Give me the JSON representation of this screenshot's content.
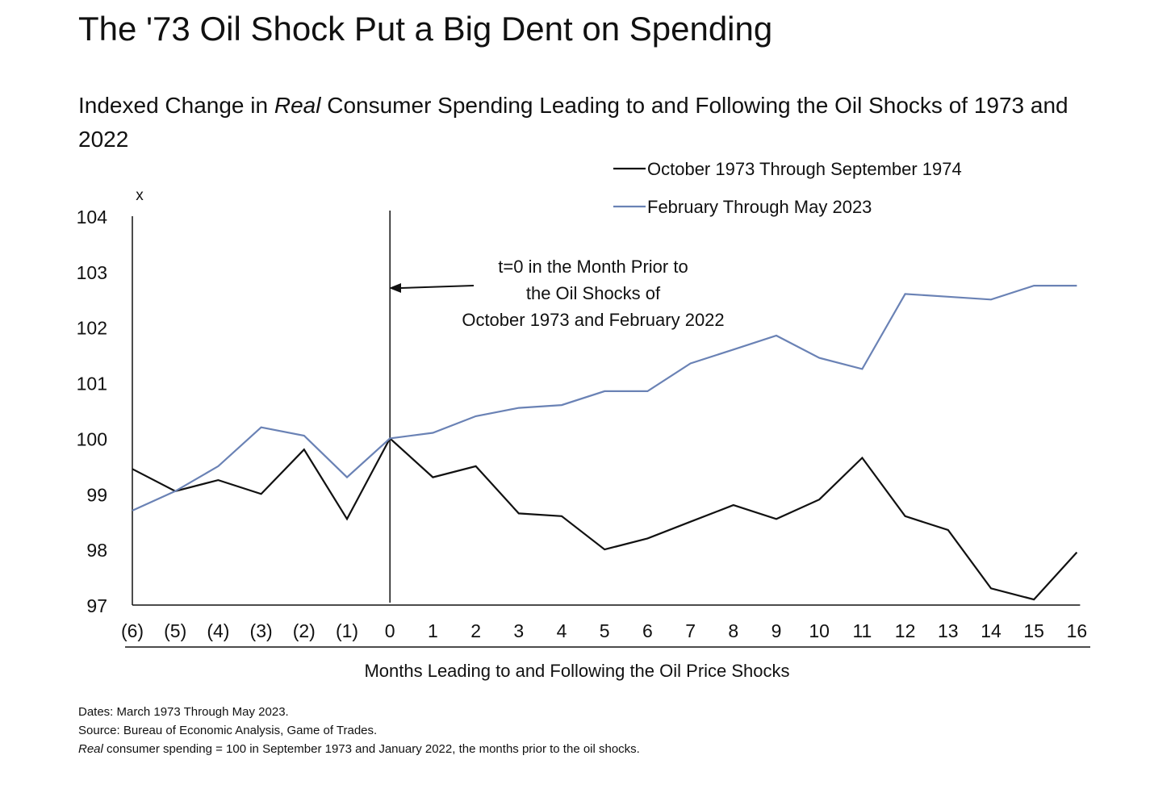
{
  "title": "The '73 Oil Shock Put a Big Dent on Spending",
  "subtitle": {
    "before": "Indexed Change in ",
    "italic": "Real",
    "after": " Consumer Spending Leading to and Following the Oil Shocks of 1973 and 2022"
  },
  "notes": {
    "dates": "Dates: March 1973 Through May 2023.",
    "source": "Source: Bureau of Economic Analysis, Game of Trades.",
    "definition_italic": "Real",
    "definition_rest": " consumer spending = 100 in September 1973 and January 2022, the months prior to the oil shocks."
  },
  "chart_data": {
    "type": "line",
    "xlabel": "Months Leading to and Following the Oil Price Shocks",
    "ylabel": "x",
    "ylim": [
      97,
      104
    ],
    "yticks": [
      97,
      98,
      99,
      100,
      101,
      102,
      103,
      104
    ],
    "categories": [
      "(6)",
      "(5)",
      "(4)",
      "(3)",
      "(2)",
      "(1)",
      "0",
      "1",
      "2",
      "3",
      "4",
      "5",
      "6",
      "7",
      "8",
      "9",
      "10",
      "11",
      "12",
      "13",
      "14",
      "15",
      "16"
    ],
    "series": [
      {
        "name": "October 1973 Through September 1974",
        "color": "#111111",
        "values": [
          99.45,
          99.05,
          99.25,
          99.0,
          99.8,
          98.55,
          100.0,
          99.3,
          99.5,
          98.65,
          98.6,
          98.0,
          98.2,
          98.5,
          98.8,
          98.55,
          98.9,
          99.65,
          98.6,
          98.35,
          97.3,
          97.1,
          97.95
        ]
      },
      {
        "name": "February Through May 2023",
        "color": "#6a82b5",
        "values": [
          98.7,
          99.05,
          99.5,
          100.2,
          100.05,
          99.3,
          100.0,
          100.1,
          100.4,
          100.55,
          100.6,
          100.85,
          100.85,
          101.35,
          101.6,
          101.85,
          101.45,
          101.25,
          102.6,
          102.55,
          102.5,
          102.75,
          102.75
        ]
      }
    ],
    "legend_position": "top-right",
    "grid": false,
    "reference_line": {
      "x": "0"
    },
    "annotation": {
      "lines": [
        "t=0 in the Month Prior to",
        "the Oil Shocks of",
        "October 1973 and February 2022"
      ]
    }
  }
}
